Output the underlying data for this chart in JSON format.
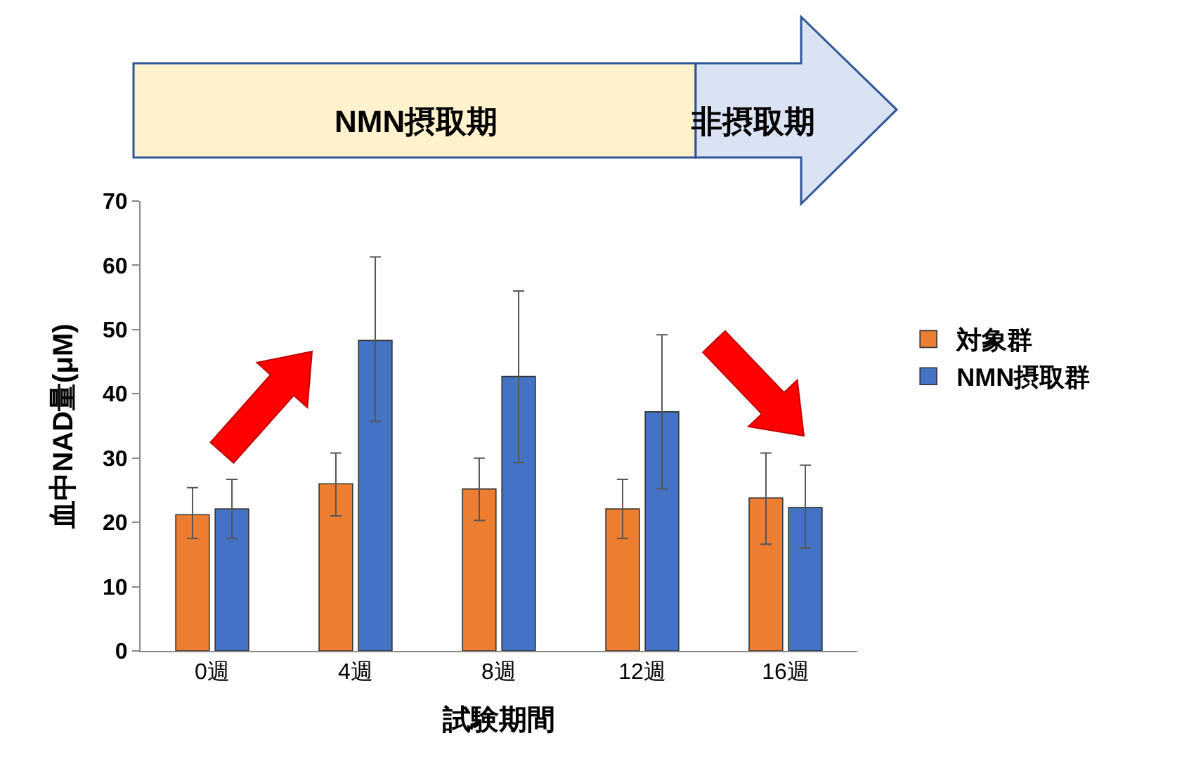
{
  "chart_data": {
    "type": "bar",
    "categories": [
      "0週",
      "4週",
      "8週",
      "12週",
      "16週"
    ],
    "series": [
      {
        "name": "対象群",
        "color": "#ed7d31",
        "values": [
          21.2,
          26.0,
          25.2,
          22.1,
          23.8
        ],
        "errors": [
          [
            17.5,
            25.4
          ],
          [
            21.0,
            30.8
          ],
          [
            20.3,
            30.0
          ],
          [
            17.5,
            26.7
          ],
          [
            16.6,
            30.8
          ]
        ]
      },
      {
        "name": "NMN摂取群",
        "color": "#4472c4",
        "values": [
          22.1,
          48.3,
          42.7,
          37.2,
          22.3
        ],
        "errors": [
          [
            17.5,
            26.7
          ],
          [
            35.7,
            61.3
          ],
          [
            29.3,
            56.0
          ],
          [
            25.2,
            49.2
          ],
          [
            16.0,
            28.9
          ]
        ]
      }
    ],
    "xlabel": "試験期間",
    "ylabel": "血中NAD量(μM)",
    "ylim": [
      0,
      70
    ],
    "yticks": [
      0,
      10,
      20,
      30,
      40,
      50,
      60,
      70
    ],
    "legend": "right",
    "annotations": [
      "NMN摂取期",
      "非摂取期"
    ]
  }
}
